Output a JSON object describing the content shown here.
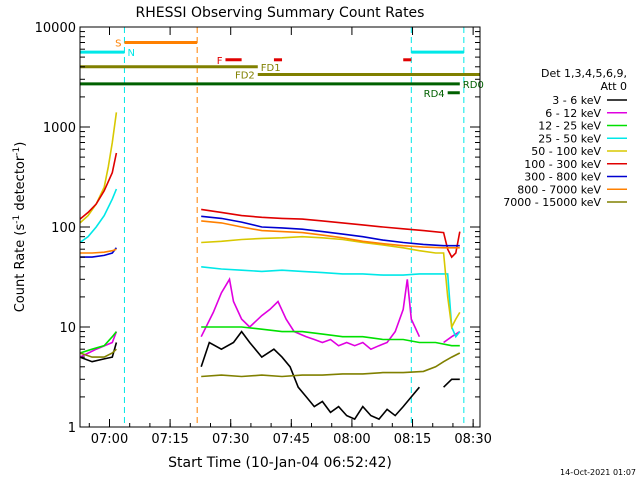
{
  "chart_data": {
    "type": "line",
    "title": "RHESSI Observing Summary Count Rates",
    "xlabel": "Start Time (10-Jan-04 06:52:42)",
    "ylabel_parts": [
      "Count Rate (s",
      "-1",
      " detector",
      "-1",
      ")"
    ],
    "x_unit": "minutes since 06:52:42",
    "xlim": [
      0,
      99
    ],
    "ylim": [
      1,
      10000
    ],
    "y_scale": "log",
    "x_ticks": [
      {
        "x": 7.3,
        "label": "07:00"
      },
      {
        "x": 22.3,
        "label": "07:15"
      },
      {
        "x": 37.3,
        "label": "07:30"
      },
      {
        "x": 52.3,
        "label": "07:45"
      },
      {
        "x": 67.3,
        "label": "08:00"
      },
      {
        "x": 82.3,
        "label": "08:15"
      },
      {
        "x": 97.3,
        "label": "08:30"
      }
    ],
    "y_ticks": [
      {
        "y": 1,
        "label": "1"
      },
      {
        "y": 10,
        "label": "10"
      },
      {
        "y": 100,
        "label": "100"
      },
      {
        "y": 1000,
        "label": "1000"
      },
      {
        "y": 10000,
        "label": "10000"
      }
    ],
    "legend": {
      "position": "right",
      "header": [
        "Det 1,3,4,5,6,9,",
        "Att 0"
      ],
      "entries": [
        {
          "label": "3 - 6 keV",
          "color": "#000000"
        },
        {
          "label": "6 - 12 keV",
          "color": "#e000e0"
        },
        {
          "label": "12 - 25 keV",
          "color": "#00e000"
        },
        {
          "label": "25 - 50 keV",
          "color": "#00e8e8"
        },
        {
          "label": "50 - 100 keV",
          "color": "#d8c800"
        },
        {
          "label": "100 - 300 keV",
          "color": "#e00000"
        },
        {
          "label": "300 - 800 keV",
          "color": "#0000d0"
        },
        {
          "label": "800 - 7000 keV",
          "color": "#ff8000"
        },
        {
          "label": "7000 - 15000 keV",
          "color": "#808000"
        }
      ]
    },
    "series": [
      {
        "name": "3 - 6 keV",
        "color": "#000000",
        "segments": [
          [
            [
              0,
              5
            ],
            [
              3,
              4.5
            ],
            [
              6,
              4.8
            ],
            [
              8,
              5
            ],
            [
              9,
              7
            ]
          ],
          [
            [
              30,
              4
            ],
            [
              32,
              7
            ],
            [
              35,
              6
            ],
            [
              38,
              7
            ],
            [
              40,
              9
            ],
            [
              42,
              7
            ],
            [
              45,
              5
            ],
            [
              48,
              6
            ],
            [
              50,
              5
            ],
            [
              52,
              4
            ],
            [
              54,
              2.5
            ],
            [
              56,
              2
            ],
            [
              58,
              1.6
            ],
            [
              60,
              1.8
            ],
            [
              62,
              1.4
            ],
            [
              64,
              1.6
            ],
            [
              66,
              1.3
            ],
            [
              68,
              1.2
            ],
            [
              70,
              1.6
            ],
            [
              72,
              1.3
            ],
            [
              74,
              1.2
            ],
            [
              76,
              1.5
            ],
            [
              78,
              1.3
            ],
            [
              80,
              1.6
            ],
            [
              82,
              2
            ],
            [
              84,
              2.5
            ]
          ],
          [
            [
              90,
              2.5
            ],
            [
              92,
              3
            ],
            [
              94,
              3
            ]
          ]
        ]
      },
      {
        "name": "6 - 12 keV",
        "color": "#e000e0",
        "segments": [
          [
            [
              0,
              5
            ],
            [
              4,
              6
            ],
            [
              8,
              7
            ],
            [
              9,
              9
            ]
          ],
          [
            [
              30,
              8
            ],
            [
              33,
              14
            ],
            [
              35,
              22
            ],
            [
              37,
              30
            ],
            [
              38,
              18
            ],
            [
              40,
              12
            ],
            [
              42,
              10
            ],
            [
              45,
              13
            ],
            [
              47,
              15
            ],
            [
              49,
              18
            ],
            [
              51,
              12
            ],
            [
              53,
              9
            ],
            [
              56,
              8
            ],
            [
              58,
              7.5
            ],
            [
              60,
              7
            ],
            [
              62,
              7.5
            ],
            [
              64,
              6.5
            ],
            [
              66,
              7
            ],
            [
              68,
              6.5
            ],
            [
              70,
              7
            ],
            [
              72,
              6
            ],
            [
              74,
              6.5
            ],
            [
              76,
              7
            ],
            [
              78,
              9
            ],
            [
              80,
              15
            ],
            [
              81,
              30
            ],
            [
              82,
              12
            ],
            [
              84,
              8
            ]
          ],
          [
            [
              90,
              7
            ],
            [
              92,
              8
            ],
            [
              94,
              9
            ]
          ]
        ]
      },
      {
        "name": "12 - 25 keV",
        "color": "#00e000",
        "segments": [
          [
            [
              0,
              5.5
            ],
            [
              3,
              6
            ],
            [
              6,
              6.5
            ],
            [
              8,
              8
            ],
            [
              9,
              9
            ]
          ],
          [
            [
              30,
              10
            ],
            [
              35,
              10
            ],
            [
              40,
              10
            ],
            [
              45,
              9.5
            ],
            [
              50,
              9
            ],
            [
              55,
              9
            ],
            [
              60,
              8.5
            ],
            [
              65,
              8
            ],
            [
              70,
              8
            ],
            [
              75,
              7.5
            ],
            [
              80,
              7.5
            ],
            [
              84,
              7
            ],
            [
              88,
              7
            ],
            [
              92,
              6.5
            ],
            [
              94,
              6.5
            ]
          ]
        ]
      },
      {
        "name": "25 - 50 keV",
        "color": "#00e8e8",
        "segments": [
          [
            [
              0,
              70
            ],
            [
              2,
              80
            ],
            [
              4,
              100
            ],
            [
              6,
              130
            ],
            [
              8,
              190
            ],
            [
              9,
              240
            ]
          ],
          [
            [
              30,
              40
            ],
            [
              35,
              38
            ],
            [
              40,
              37
            ],
            [
              45,
              36
            ],
            [
              50,
              37
            ],
            [
              55,
              36
            ],
            [
              60,
              35
            ],
            [
              65,
              34
            ],
            [
              70,
              34
            ],
            [
              75,
              33
            ],
            [
              80,
              33
            ],
            [
              84,
              34
            ],
            [
              88,
              34
            ],
            [
              91,
              34
            ],
            [
              92,
              10
            ],
            [
              93,
              8
            ],
            [
              94,
              9
            ]
          ]
        ]
      },
      {
        "name": "50 - 100 keV",
        "color": "#d8c800",
        "segments": [
          [
            [
              0,
              110
            ],
            [
              2,
              130
            ],
            [
              4,
              170
            ],
            [
              6,
              250
            ],
            [
              7,
              400
            ],
            [
              8,
              700
            ],
            [
              9,
              1400
            ]
          ],
          [
            [
              30,
              70
            ],
            [
              35,
              72
            ],
            [
              40,
              75
            ],
            [
              45,
              77
            ],
            [
              50,
              78
            ],
            [
              55,
              80
            ],
            [
              60,
              78
            ],
            [
              65,
              75
            ],
            [
              70,
              70
            ],
            [
              75,
              66
            ],
            [
              80,
              62
            ],
            [
              84,
              58
            ],
            [
              88,
              55
            ],
            [
              90,
              55
            ],
            [
              91,
              20
            ],
            [
              92,
              10
            ],
            [
              93,
              12
            ],
            [
              94,
              14
            ]
          ]
        ]
      },
      {
        "name": "100 - 300 keV",
        "color": "#e00000",
        "segments": [
          [
            [
              0,
              120
            ],
            [
              2,
              140
            ],
            [
              4,
              170
            ],
            [
              6,
              230
            ],
            [
              8,
              350
            ],
            [
              9,
              550
            ]
          ],
          [
            [
              30,
              150
            ],
            [
              35,
              140
            ],
            [
              40,
              130
            ],
            [
              45,
              125
            ],
            [
              50,
              122
            ],
            [
              55,
              120
            ],
            [
              60,
              115
            ],
            [
              65,
              110
            ],
            [
              70,
              105
            ],
            [
              75,
              100
            ],
            [
              80,
              96
            ],
            [
              85,
              92
            ],
            [
              90,
              88
            ],
            [
              91,
              60
            ],
            [
              92,
              50
            ],
            [
              93,
              55
            ],
            [
              94,
              90
            ]
          ]
        ]
      },
      {
        "name": "300 - 800 keV",
        "color": "#0000d0",
        "segments": [
          [
            [
              0,
              50
            ],
            [
              3,
              50
            ],
            [
              6,
              52
            ],
            [
              8,
              55
            ],
            [
              9,
              62
            ]
          ],
          [
            [
              30,
              128
            ],
            [
              35,
              122
            ],
            [
              40,
              112
            ],
            [
              45,
              100
            ],
            [
              50,
              98
            ],
            [
              55,
              95
            ],
            [
              60,
              90
            ],
            [
              65,
              85
            ],
            [
              70,
              80
            ],
            [
              75,
              74
            ],
            [
              80,
              70
            ],
            [
              85,
              67
            ],
            [
              90,
              65
            ],
            [
              94,
              65
            ]
          ]
        ]
      },
      {
        "name": "800 - 7000 keV",
        "color": "#ff8000",
        "segments": [
          [
            [
              0,
              55
            ],
            [
              3,
              55
            ],
            [
              6,
              56
            ],
            [
              8,
              58
            ],
            [
              9,
              60
            ]
          ],
          [
            [
              30,
              115
            ],
            [
              35,
              110
            ],
            [
              40,
              100
            ],
            [
              45,
              92
            ],
            [
              50,
              90
            ],
            [
              55,
              88
            ],
            [
              60,
              83
            ],
            [
              65,
              78
            ],
            [
              70,
              72
            ],
            [
              75,
              68
            ],
            [
              80,
              65
            ],
            [
              85,
              63
            ],
            [
              90,
              62
            ],
            [
              94,
              62
            ]
          ]
        ]
      },
      {
        "name": "7000 - 15000 keV",
        "color": "#808000",
        "segments": [
          [
            [
              0,
              5.5
            ],
            [
              3,
              5
            ],
            [
              6,
              5
            ],
            [
              8,
              5.5
            ],
            [
              9,
              6
            ]
          ],
          [
            [
              30,
              3.2
            ],
            [
              35,
              3.3
            ],
            [
              40,
              3.2
            ],
            [
              45,
              3.3
            ],
            [
              50,
              3.2
            ],
            [
              55,
              3.3
            ],
            [
              60,
              3.3
            ],
            [
              65,
              3.4
            ],
            [
              70,
              3.4
            ],
            [
              75,
              3.5
            ],
            [
              80,
              3.5
            ],
            [
              85,
              3.6
            ],
            [
              88,
              4
            ],
            [
              90,
              4.5
            ],
            [
              92,
              5
            ],
            [
              94,
              5.5
            ]
          ]
        ]
      }
    ],
    "vlines": [
      {
        "x": 11,
        "color": "#00e8e8"
      },
      {
        "x": 29,
        "color": "#ff8000"
      },
      {
        "x": 82,
        "color": "#00e8e8"
      },
      {
        "x": 95,
        "color": "#00e8e8"
      }
    ],
    "flag_bars": [
      {
        "label": "S",
        "color": "#ff8000",
        "y": 7000,
        "x0": 11,
        "x1": 29,
        "label_side": "left"
      },
      {
        "label": "N",
        "color": "#00e8e8",
        "y": 5600,
        "x0": 0,
        "x1": 11,
        "label_side": "right"
      },
      {
        "label": "",
        "color": "#00e8e8",
        "y": 5600,
        "x0": 82,
        "x1": 95,
        "label_side": "none"
      },
      {
        "label": "F",
        "color": "#e00000",
        "y": 4700,
        "x0": 36,
        "x1": 40,
        "label_side": "left"
      },
      {
        "label": "",
        "color": "#e00000",
        "y": 4700,
        "x0": 48,
        "x1": 50,
        "label_side": "none"
      },
      {
        "label": "",
        "color": "#e00000",
        "y": 4700,
        "x0": 80,
        "x1": 82,
        "label_side": "none"
      },
      {
        "label": "FD1",
        "color": "#808000",
        "y": 4000,
        "x0": 0,
        "x1": 44,
        "label_side": "right"
      },
      {
        "label": "FD2",
        "color": "#808000",
        "y": 3350,
        "x0": 44,
        "x1": 99,
        "label_side": "left"
      },
      {
        "label": "RD0",
        "color": "#006000",
        "y": 2700,
        "x0": 0,
        "x1": 94,
        "label_side": "right"
      },
      {
        "label": "RD4",
        "color": "#006000",
        "y": 2200,
        "x0": 91,
        "x1": 94,
        "label_side": "left"
      }
    ]
  },
  "timestamp": "14-Oct-2021 01:07"
}
